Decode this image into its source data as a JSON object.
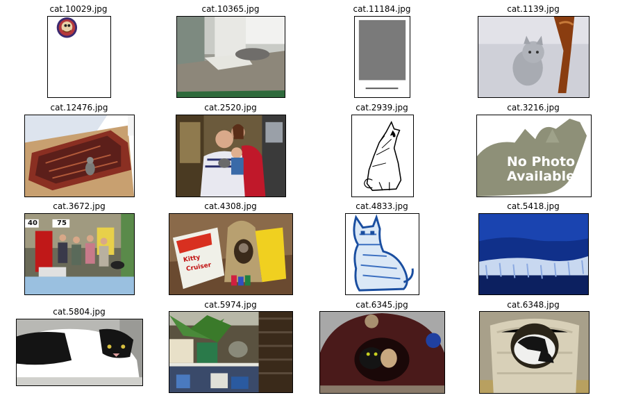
{
  "figure": {
    "images": [
      {
        "caption": "cat.10029.jpg",
        "icon": "cartoon-cat-badge-image"
      },
      {
        "caption": "cat.10365.jpg",
        "icon": "cat-on-floor-photo"
      },
      {
        "caption": "cat.11184.jpg",
        "icon": "gray-placeholder-image"
      },
      {
        "caption": "cat.1139.jpg",
        "icon": "gray-kitten-photo"
      },
      {
        "caption": "cat.12476.jpg",
        "icon": "cat-on-rug-photo"
      },
      {
        "caption": "cat.2520.jpg",
        "icon": "family-holding-cat-photo"
      },
      {
        "caption": "cat.2939.jpg",
        "icon": "cat-line-drawing"
      },
      {
        "caption": "cat.3216.jpg",
        "icon": "no-photo-available-image",
        "overlay_lines": [
          "No Photo",
          "Available"
        ]
      },
      {
        "caption": "cat.3672.jpg",
        "icon": "group-at-booth-photo",
        "signs": [
          "40",
          "75"
        ]
      },
      {
        "caption": "cat.4308.jpg",
        "icon": "cat-toy-box-photo",
        "box_lines": [
          "Kitty",
          "Cruiser"
        ]
      },
      {
        "caption": "cat.4833.jpg",
        "icon": "blue-cat-drawing"
      },
      {
        "caption": "cat.5418.jpg",
        "icon": "blue-landscape-photo"
      },
      {
        "caption": "cat.5804.jpg",
        "icon": "black-white-cat-photo"
      },
      {
        "caption": "cat.5974.jpg",
        "icon": "cat-on-shelf-photo"
      },
      {
        "caption": "cat.6345.jpg",
        "icon": "cat-in-bed-photo"
      },
      {
        "caption": "cat.6348.jpg",
        "icon": "cat-in-tower-photo"
      }
    ]
  }
}
